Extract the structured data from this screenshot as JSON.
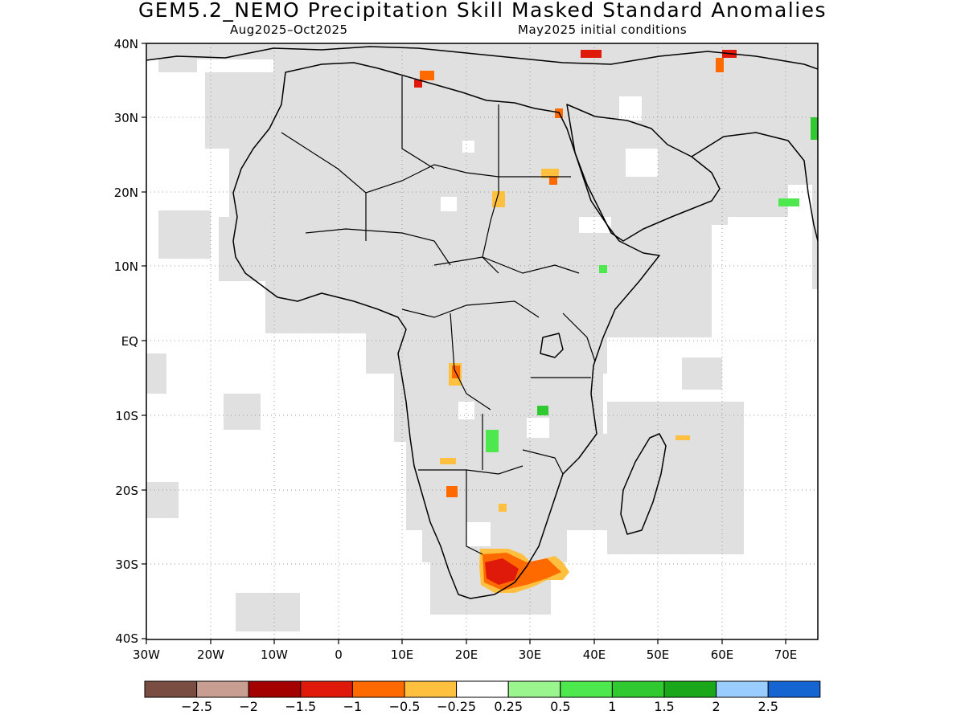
{
  "title": "GEM5.2_NEMO Precipitation Skill Masked Standard Anomalies",
  "subtitle_left": "Aug2025–Oct2025",
  "subtitle_right": "May2025 initial conditions",
  "lat_labels": [
    "40N",
    "30N",
    "20N",
    "10N",
    "EQ",
    "10S",
    "20S",
    "30S",
    "40S"
  ],
  "lon_labels": [
    "30W",
    "20W",
    "10W",
    "0",
    "10E",
    "20E",
    "30E",
    "40E",
    "50E",
    "60E",
    "70E"
  ],
  "colorbar": {
    "colors": [
      "#7a4d42",
      "#c89d92",
      "#a30000",
      "#e01a0a",
      "#ff6a00",
      "#ffbf3f",
      "#ffffff",
      "#9bf58f",
      "#4de84d",
      "#30c930",
      "#1aa81a",
      "#99ccff",
      "#1464d2"
    ],
    "labels": [
      "−2.5",
      "−2",
      "−1.5",
      "−1",
      "−0.5",
      "−0.25",
      "0.25",
      "0.5",
      "1",
      "1.5",
      "2",
      "2.5"
    ]
  },
  "colors": {
    "masked_gray": "#e0e0e0",
    "grid_dots": "#999999"
  }
}
